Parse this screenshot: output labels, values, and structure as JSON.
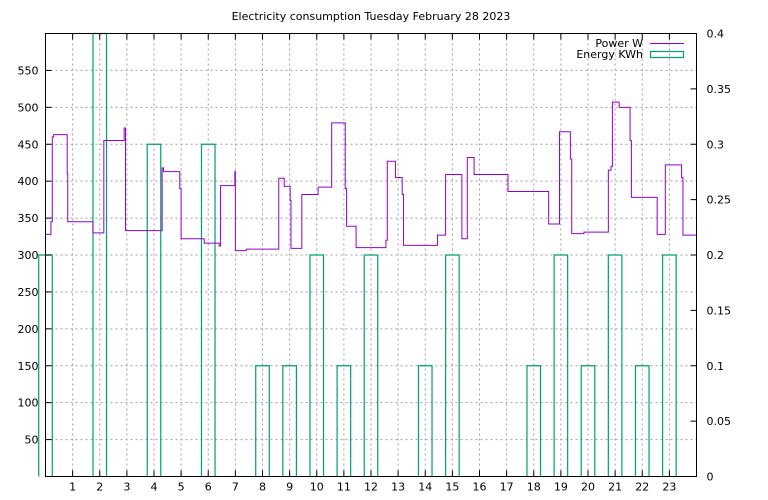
{
  "chart_data": {
    "type": "line",
    "title": "Electricity consumption Tuesday February 28 2023",
    "xlabel": "",
    "ylabel": "",
    "xlim": [
      0,
      24
    ],
    "ylim": [
      0,
      600
    ],
    "y2lim": [
      0,
      0.4
    ],
    "x_ticks": [
      "1",
      "2",
      "3",
      "4",
      "5",
      "6",
      "7",
      "8",
      "9",
      "10",
      "11",
      "12",
      "13",
      "14",
      "15",
      "16",
      "17",
      "18",
      "19",
      "20",
      "21",
      "22",
      "23"
    ],
    "y_ticks": [
      "50",
      "100",
      "150",
      "200",
      "250",
      "300",
      "350",
      "400",
      "450",
      "500",
      "550"
    ],
    "y2_ticks": [
      "0",
      "0.05",
      "0.1",
      "0.15",
      "0.2",
      "0.25",
      "0.3",
      "0.35",
      "0.4"
    ],
    "grid": true,
    "legend_position": "top-right",
    "series": [
      {
        "name": "Power W",
        "axis": "y1",
        "color": "#9400d3",
        "step": true,
        "points": [
          [
            0.0,
            328
          ],
          [
            0.2,
            345
          ],
          [
            0.25,
            460
          ],
          [
            0.3,
            463
          ],
          [
            0.75,
            463
          ],
          [
            0.8,
            410
          ],
          [
            0.82,
            345
          ],
          [
            1.0,
            345
          ],
          [
            1.7,
            345
          ],
          [
            1.75,
            330
          ],
          [
            2.1,
            330
          ],
          [
            2.15,
            455
          ],
          [
            2.6,
            455
          ],
          [
            2.85,
            455
          ],
          [
            2.9,
            472
          ],
          [
            2.95,
            333
          ],
          [
            3.5,
            333
          ],
          [
            4.25,
            333
          ],
          [
            4.3,
            418
          ],
          [
            4.35,
            413
          ],
          [
            4.9,
            413
          ],
          [
            4.95,
            390
          ],
          [
            5.0,
            322
          ],
          [
            5.8,
            322
          ],
          [
            5.85,
            316
          ],
          [
            6.3,
            316
          ],
          [
            6.4,
            312
          ],
          [
            6.45,
            394
          ],
          [
            6.95,
            394
          ],
          [
            6.98,
            413
          ],
          [
            7.0,
            306
          ],
          [
            7.4,
            308
          ],
          [
            8.5,
            308
          ],
          [
            8.6,
            404
          ],
          [
            8.8,
            393
          ],
          [
            9.0,
            393
          ],
          [
            9.02,
            374
          ],
          [
            9.05,
            309
          ],
          [
            9.4,
            309
          ],
          [
            9.45,
            382
          ],
          [
            10.0,
            382
          ],
          [
            10.05,
            392
          ],
          [
            10.5,
            392
          ],
          [
            10.55,
            479
          ],
          [
            11.0,
            479
          ],
          [
            11.05,
            390
          ],
          [
            11.1,
            339
          ],
          [
            11.4,
            339
          ],
          [
            11.45,
            310
          ],
          [
            12.5,
            310
          ],
          [
            12.55,
            320
          ],
          [
            12.6,
            427
          ],
          [
            12.85,
            427
          ],
          [
            12.9,
            405
          ],
          [
            13.1,
            405
          ],
          [
            13.15,
            382
          ],
          [
            13.2,
            313
          ],
          [
            14.4,
            313
          ],
          [
            14.45,
            327
          ],
          [
            14.7,
            327
          ],
          [
            14.75,
            409
          ],
          [
            15.3,
            409
          ],
          [
            15.35,
            322
          ],
          [
            15.5,
            322
          ],
          [
            15.55,
            432
          ],
          [
            15.75,
            432
          ],
          [
            15.8,
            409
          ],
          [
            17.0,
            409
          ],
          [
            17.05,
            386
          ],
          [
            18.5,
            386
          ],
          [
            18.55,
            342
          ],
          [
            18.9,
            342
          ],
          [
            18.95,
            467
          ],
          [
            19.3,
            467
          ],
          [
            19.35,
            430
          ],
          [
            19.4,
            329
          ],
          [
            19.8,
            329
          ],
          [
            19.85,
            331
          ],
          [
            20.7,
            331
          ],
          [
            20.75,
            415
          ],
          [
            20.85,
            420
          ],
          [
            20.9,
            507
          ],
          [
            21.1,
            507
          ],
          [
            21.15,
            500
          ],
          [
            21.5,
            500
          ],
          [
            21.55,
            455
          ],
          [
            21.6,
            378
          ],
          [
            22.5,
            378
          ],
          [
            22.55,
            328
          ],
          [
            22.8,
            328
          ],
          [
            22.85,
            422
          ],
          [
            23.4,
            422
          ],
          [
            23.45,
            405
          ],
          [
            23.5,
            327
          ],
          [
            23.9,
            327
          ],
          [
            24.0,
            328
          ]
        ]
      },
      {
        "name": "Energy KWh",
        "axis": "y2",
        "color": "#009e73",
        "bars": [
          {
            "x": 0,
            "value": 0.2
          },
          {
            "x": 2,
            "value": 0.4
          },
          {
            "x": 4,
            "value": 0.3
          },
          {
            "x": 6,
            "value": 0.3
          },
          {
            "x": 8,
            "value": 0.1
          },
          {
            "x": 9,
            "value": 0.1
          },
          {
            "x": 10,
            "value": 0.2
          },
          {
            "x": 11,
            "value": 0.1
          },
          {
            "x": 12,
            "value": 0.2
          },
          {
            "x": 14,
            "value": 0.1
          },
          {
            "x": 15,
            "value": 0.2
          },
          {
            "x": 18,
            "value": 0.1
          },
          {
            "x": 19,
            "value": 0.2
          },
          {
            "x": 20,
            "value": 0.1
          },
          {
            "x": 21,
            "value": 0.2
          },
          {
            "x": 22,
            "value": 0.1
          },
          {
            "x": 23,
            "value": 0.2
          }
        ]
      }
    ]
  }
}
